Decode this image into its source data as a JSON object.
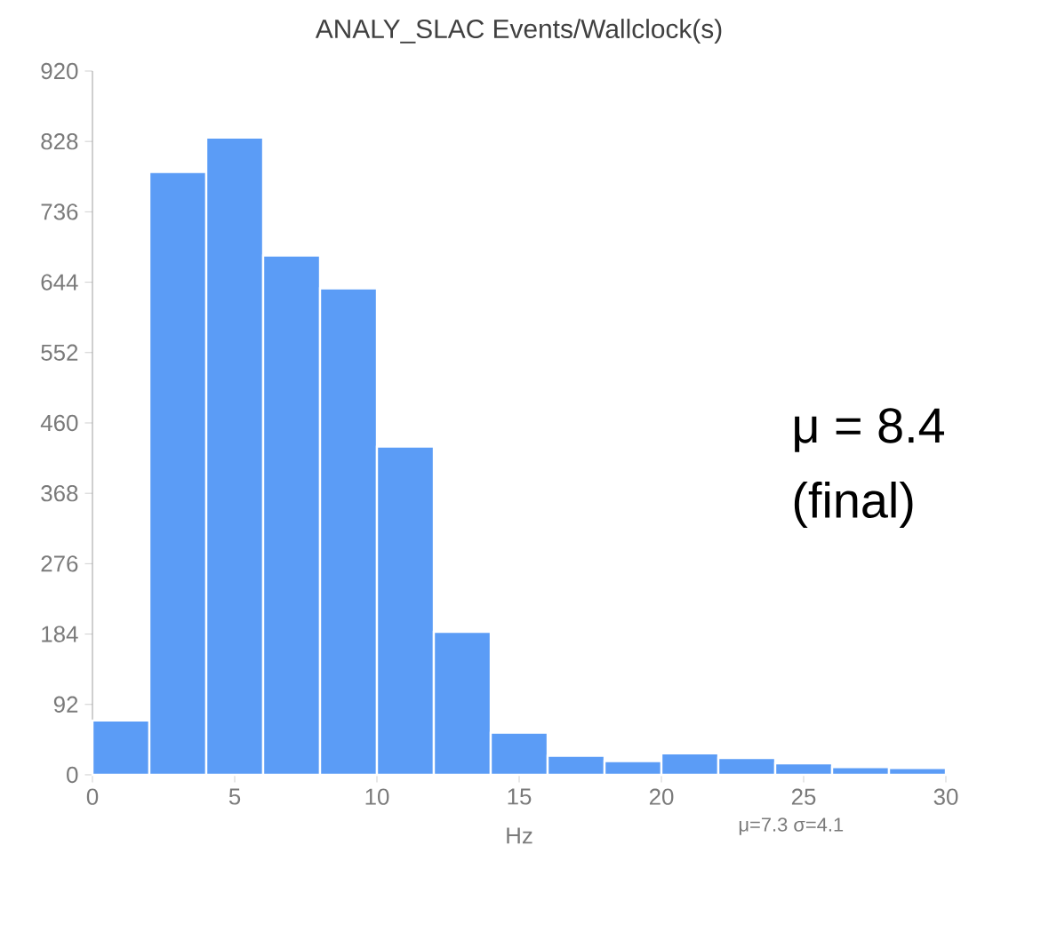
{
  "chart_data": {
    "type": "histogram",
    "title": "ANALY_SLAC Events/Wallclock(s)",
    "xlabel": "Hz",
    "bins": [
      0,
      2,
      4,
      6,
      8,
      10,
      12,
      14,
      16,
      18,
      20,
      22,
      24,
      26,
      28,
      30
    ],
    "values": [
      71,
      788,
      833,
      679,
      636,
      429,
      187,
      55,
      25,
      18,
      28,
      22,
      15,
      10,
      9
    ],
    "color": "#5b9cf6",
    "xlim": [
      0,
      30
    ],
    "ylim": [
      0,
      920
    ],
    "xticks": [
      0,
      5,
      10,
      15,
      20,
      25,
      30
    ],
    "yticks": [
      0,
      92,
      184,
      276,
      368,
      460,
      552,
      644,
      736,
      828,
      920
    ],
    "annotations": [
      "μ = 8.4",
      "(final)",
      "μ=7.3 σ=4.1"
    ]
  }
}
